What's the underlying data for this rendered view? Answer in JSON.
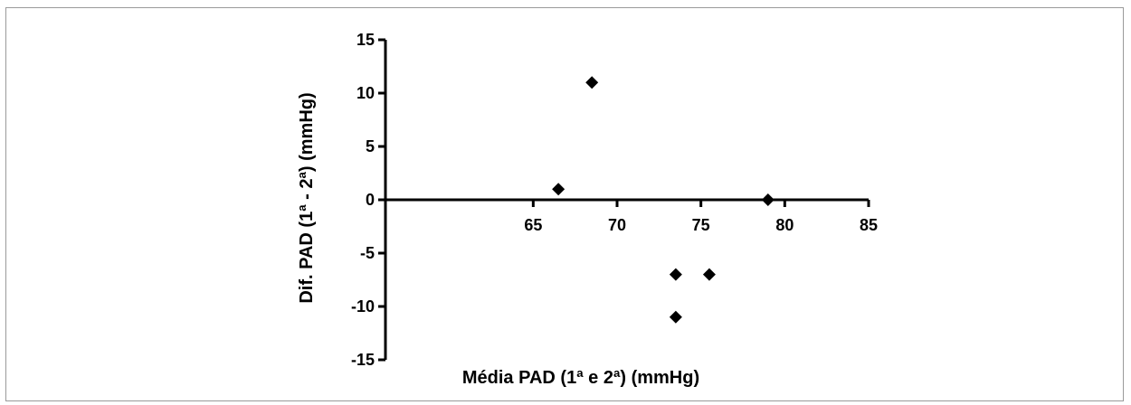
{
  "chart_data": {
    "type": "scatter",
    "title": "",
    "xlabel": "Média PAD (1ª e 2ª) (mmHg)",
    "ylabel": "Dif. PAD (1ª - 2ª) (mmHg)",
    "xlim": [
      55,
      85
    ],
    "ylim": [
      -15,
      15
    ],
    "xticks": [
      65,
      70,
      75,
      80,
      85
    ],
    "yticks": [
      15,
      10,
      5,
      0,
      -5,
      -10,
      -15
    ],
    "marker": "diamond",
    "color": "#000000",
    "grid": false,
    "series": [
      {
        "points": [
          {
            "x": 66.5,
            "y": 1
          },
          {
            "x": 68.5,
            "y": 11
          },
          {
            "x": 73.5,
            "y": -7
          },
          {
            "x": 73.5,
            "y": -11
          },
          {
            "x": 75.5,
            "y": -7
          },
          {
            "x": 79.0,
            "y": 0
          }
        ]
      }
    ]
  }
}
